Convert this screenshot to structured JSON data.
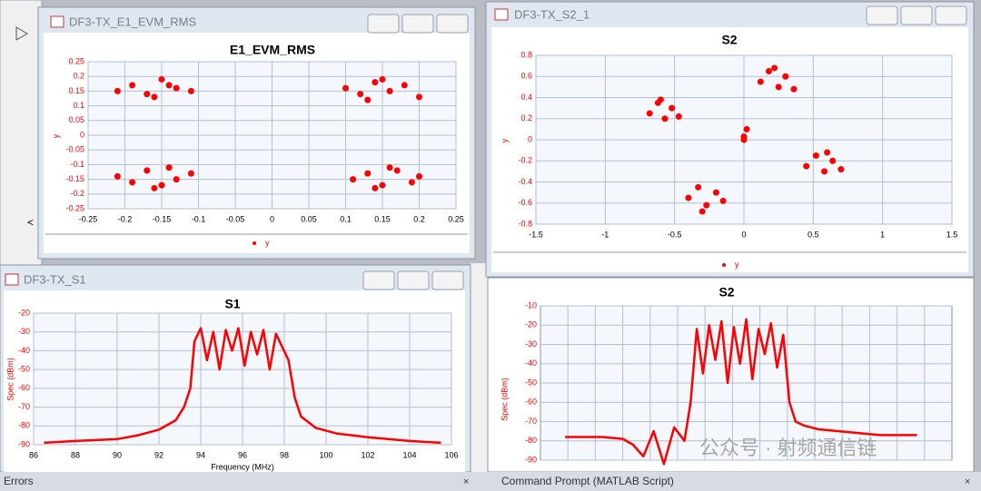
{
  "windows": [
    "DF3-TX_E1_EVM_RMS",
    "DF3-TX_S2_1",
    "DF3-TX_S1"
  ],
  "panels": [
    "Errors",
    "Command Prompt (MATLAB Script)"
  ],
  "watermark": "公众号 · 射频通信链",
  "chart_data": [
    {
      "type": "scatter",
      "title": "E1_EVM_RMS",
      "y_label": "y",
      "xlim": [
        -0.25,
        0.25
      ],
      "ylim": [
        -0.25,
        0.25
      ],
      "xticks": [
        -0.25,
        -0.2,
        -0.15,
        -0.1,
        -0.05,
        0,
        0.05,
        0.1,
        0.15,
        0.2,
        0.25
      ],
      "yticks": [
        -0.25,
        -0.2,
        -0.15,
        -0.1,
        -0.05,
        0,
        0.05,
        0.1,
        0.15,
        0.2,
        0.25
      ],
      "grid": true,
      "series": [
        {
          "name": "y",
          "color": "#ff0000",
          "x": [
            -0.21,
            -0.19,
            -0.17,
            -0.15,
            -0.13,
            -0.11,
            -0.16,
            -0.14,
            0.1,
            0.12,
            0.14,
            0.16,
            0.18,
            0.2,
            0.15,
            0.13,
            -0.21,
            -0.19,
            -0.17,
            -0.15,
            -0.13,
            -0.11,
            -0.16,
            -0.14,
            0.11,
            0.13,
            0.15,
            0.17,
            0.19,
            0.2,
            0.14,
            0.16
          ],
          "values": [
            0.15,
            0.17,
            0.14,
            0.19,
            0.16,
            0.15,
            0.13,
            0.17,
            0.16,
            0.14,
            0.18,
            0.15,
            0.17,
            0.13,
            0.19,
            0.12,
            -0.14,
            -0.16,
            -0.12,
            -0.17,
            -0.15,
            -0.13,
            -0.18,
            -0.11,
            -0.15,
            -0.13,
            -0.17,
            -0.12,
            -0.16,
            -0.14,
            -0.18,
            -0.11
          ]
        }
      ]
    },
    {
      "type": "scatter",
      "title": "S2",
      "y_label": "y",
      "xlim": [
        -1.5,
        1.5
      ],
      "ylim": [
        -0.8,
        0.8
      ],
      "xticks": [
        -1.5,
        -1,
        -0.5,
        0,
        0.5,
        1,
        1.5
      ],
      "yticks": [
        -0.8,
        -0.6,
        -0.4,
        -0.2,
        0,
        0.2,
        0.4,
        0.6,
        0.8
      ],
      "grid": true,
      "series": [
        {
          "name": "y",
          "color": "#ff0000",
          "x": [
            -0.68,
            -0.62,
            -0.57,
            -0.52,
            -0.47,
            -0.6,
            0.12,
            0.18,
            0.25,
            0.3,
            0.36,
            0.22,
            0.45,
            0.52,
            0.58,
            0.64,
            0.7,
            0.6,
            -0.4,
            -0.33,
            -0.27,
            -0.2,
            -0.15,
            -0.3,
            0,
            0.02,
            0
          ],
          "values": [
            0.25,
            0.35,
            0.2,
            0.3,
            0.22,
            0.38,
            0.55,
            0.65,
            0.5,
            0.6,
            0.48,
            0.68,
            -0.25,
            -0.15,
            -0.3,
            -0.2,
            -0.28,
            -0.12,
            -0.55,
            -0.45,
            -0.62,
            -0.5,
            -0.58,
            -0.68,
            0,
            0.1,
            0.03
          ]
        }
      ]
    },
    {
      "type": "line",
      "title": "S1",
      "x_label": "Frequency (MHz)",
      "y_label": "Spec (dBm)",
      "xlim": [
        86,
        106
      ],
      "ylim": [
        -90,
        -20
      ],
      "xticks": [
        86,
        88,
        90,
        92,
        94,
        96,
        98,
        100,
        102,
        104,
        106
      ],
      "yticks": [
        -90,
        -80,
        -70,
        -60,
        -50,
        -40,
        -30,
        -20
      ],
      "grid": true,
      "series": [
        {
          "name": "y",
          "color": "#ff0000",
          "x": [
            86.5,
            88,
            90,
            91,
            92,
            92.8,
            93.2,
            93.5,
            93.7,
            94,
            94.3,
            94.6,
            94.9,
            95.2,
            95.5,
            95.8,
            96.1,
            96.4,
            96.7,
            97,
            97.3,
            97.6,
            97.9,
            98.2,
            98.5,
            98.8,
            99.5,
            100.5,
            102,
            104,
            105.5
          ],
          "values": [
            -89,
            -88,
            -87,
            -85,
            -82,
            -77,
            -70,
            -60,
            -35,
            -28,
            -45,
            -30,
            -50,
            -29,
            -40,
            -28,
            -48,
            -30,
            -42,
            -29,
            -50,
            -31,
            -38,
            -45,
            -65,
            -75,
            -81,
            -84,
            -86,
            -88,
            -89
          ]
        }
      ]
    },
    {
      "type": "line",
      "title": "S2",
      "y_label": "Spec (dBm)",
      "xlim": [
        86,
        106
      ],
      "ylim": [
        -90,
        -10
      ],
      "yticks": [
        -90,
        -80,
        -70,
        -60,
        -50,
        -40,
        -30,
        -20,
        -10
      ],
      "grid": true,
      "series": [
        {
          "name": "y",
          "color": "#ff0000",
          "x": [
            87.2,
            88,
            89,
            90,
            90.5,
            91,
            91.5,
            92,
            92.5,
            93,
            93.3,
            93.6,
            93.9,
            94.2,
            94.5,
            94.8,
            95.1,
            95.4,
            95.7,
            96,
            96.3,
            96.6,
            96.9,
            97.2,
            97.5,
            97.8,
            98.1,
            98.4,
            98.8,
            99.5,
            100.5,
            101.5,
            102.5,
            103.5,
            104.3
          ],
          "values": [
            -78,
            -78,
            -78,
            -79,
            -82,
            -88,
            -75,
            -92,
            -73,
            -80,
            -60,
            -22,
            -45,
            -20,
            -38,
            -18,
            -50,
            -21,
            -40,
            -17,
            -48,
            -22,
            -35,
            -19,
            -42,
            -25,
            -60,
            -70,
            -72,
            -74,
            -75,
            -76,
            -77,
            -77,
            -77
          ]
        }
      ]
    }
  ]
}
